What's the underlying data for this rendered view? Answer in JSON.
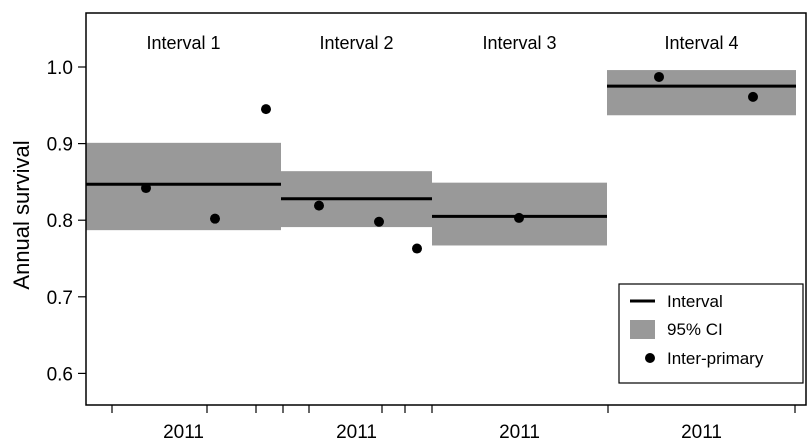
{
  "chart_data": {
    "type": "scatter",
    "ylabel": "Annual survival",
    "ylim": [
      0.55,
      1.08
    ],
    "yticks": [
      0.6,
      0.7,
      0.8,
      0.9,
      1.0
    ],
    "ytick_labels": [
      "0.6",
      "0.7",
      "0.8",
      "0.9",
      "1.0"
    ],
    "intervals": [
      {
        "label": "Interval 1",
        "year": "2011",
        "estimate": 0.847,
        "ci": [
          0.787,
          0.901
        ]
      },
      {
        "label": "Interval 2",
        "year": "2011",
        "estimate": 0.828,
        "ci": [
          0.791,
          0.864
        ]
      },
      {
        "label": "Interval 3",
        "year": "2011",
        "estimate": 0.805,
        "ci": [
          0.767,
          0.849
        ]
      },
      {
        "label": "Interval 4",
        "year": "2011",
        "estimate": 0.975,
        "ci": [
          0.937,
          0.996
        ]
      }
    ],
    "inter_primary_points": [
      {
        "interval": 0,
        "value": 0.842
      },
      {
        "interval": 0,
        "value": 0.802
      },
      {
        "interval": 0,
        "value": 0.945
      },
      {
        "interval": 1,
        "value": 0.819
      },
      {
        "interval": 1,
        "value": 0.798
      },
      {
        "interval": 1,
        "value": 0.763
      },
      {
        "interval": 2,
        "value": 0.803
      },
      {
        "interval": 3,
        "value": 0.987
      },
      {
        "interval": 3,
        "value": 0.961
      }
    ],
    "legend": {
      "position": "bottom-right",
      "items": [
        {
          "label": "Interval",
          "symbol": "line"
        },
        {
          "label": "95% CI",
          "symbol": "box"
        },
        {
          "label": "Inter-primary",
          "symbol": "dot"
        }
      ]
    },
    "colors": {
      "interval_line": "#000000",
      "ci_fill": "#999999",
      "points": "#000000",
      "axes": "#000000"
    },
    "grid": false
  }
}
